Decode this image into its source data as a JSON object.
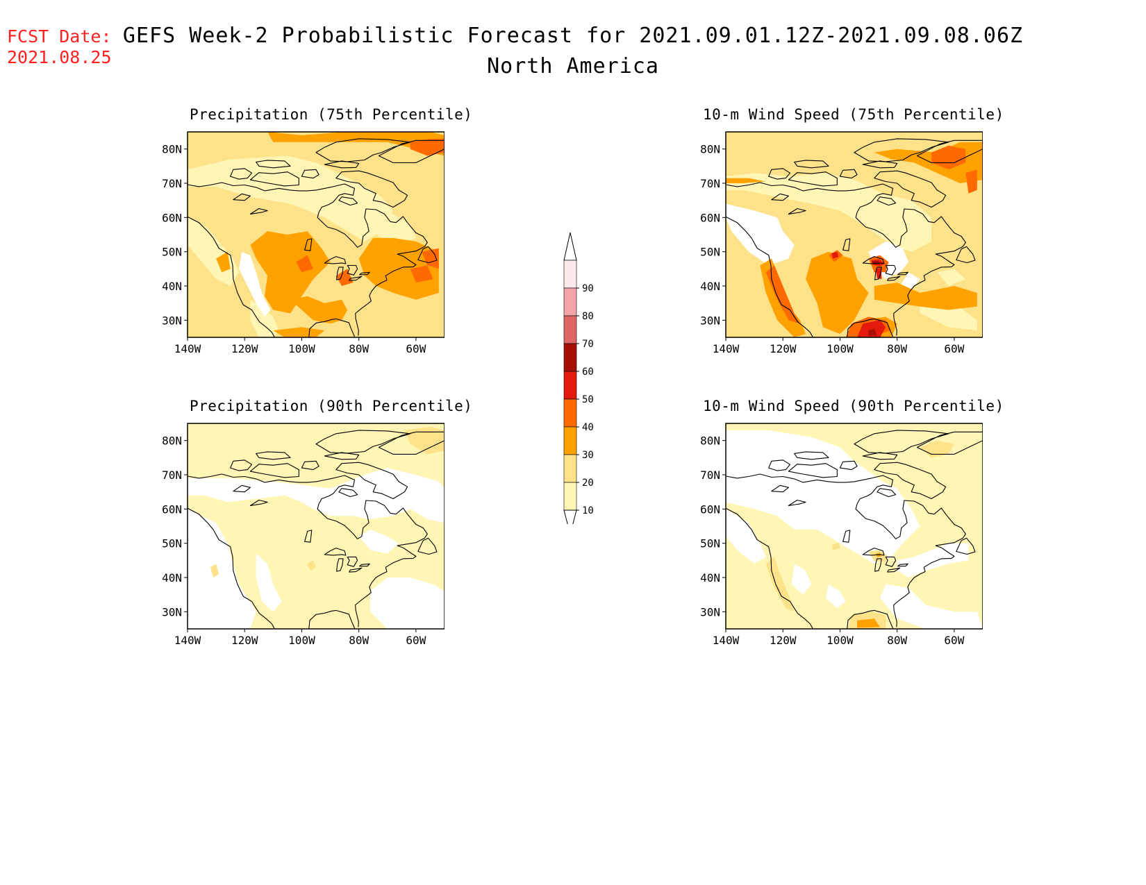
{
  "header": {
    "fcst_label": "FCST Date:",
    "fcst_date": "2021.08.25",
    "title": "GEFS Week-2 Probabilistic Forecast for 2021.09.01.12Z-2021.09.08.06Z",
    "subtitle": "North America"
  },
  "axes": {
    "lat_ticks": [
      "80N",
      "70N",
      "60N",
      "50N",
      "40N",
      "30N"
    ],
    "lon_ticks": [
      "140W",
      "120W",
      "100W",
      "80W",
      "60W"
    ]
  },
  "panels": [
    {
      "title": "Precipitation (75th Percentile)"
    },
    {
      "title": "10-m Wind Speed (75th Percentile)"
    },
    {
      "title": "Precipitation (90th Percentile)"
    },
    {
      "title": "10-m Wind Speed (90th Percentile)"
    }
  ],
  "colorbar": {
    "labels": [
      "90",
      "80",
      "70",
      "60",
      "50",
      "40",
      "30",
      "20",
      "10"
    ],
    "colors": [
      "#fde8ea",
      "#f4a4a8",
      "#e06666",
      "#a50f05",
      "#e31a0c",
      "#ff6a00",
      "#ffa200",
      "#fde28a",
      "#fff6b5"
    ]
  }
}
